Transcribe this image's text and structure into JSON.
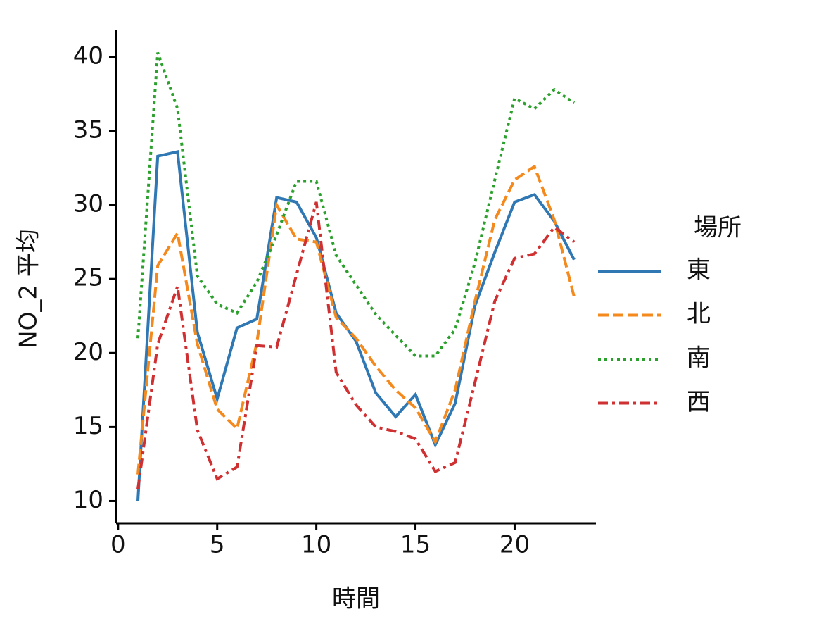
{
  "chart_data": {
    "type": "line",
    "x_label": "時間",
    "y_label": "NO_2 平均",
    "x": [
      1,
      2,
      3,
      4,
      5,
      6,
      7,
      8,
      9,
      10,
      11,
      12,
      13,
      14,
      15,
      16,
      17,
      18,
      19,
      20,
      21,
      22,
      23
    ],
    "series": [
      {
        "name": "東",
        "color": "#2f78b4",
        "linestyle": "solid",
        "values": [
          10.0,
          33.3,
          33.6,
          21.4,
          16.9,
          21.7,
          22.3,
          30.5,
          30.2,
          27.8,
          22.7,
          20.8,
          17.3,
          15.7,
          17.2,
          13.8,
          16.6,
          23.2,
          26.8,
          30.2,
          30.7,
          28.9,
          26.3
        ]
      },
      {
        "name": "北",
        "color": "#f48a1e",
        "linestyle": "dashed",
        "values": [
          11.8,
          25.9,
          28.1,
          20.6,
          16.2,
          14.9,
          20.7,
          30.0,
          27.7,
          27.5,
          22.4,
          21.0,
          19.1,
          17.5,
          16.3,
          14.0,
          17.5,
          23.5,
          29.0,
          31.7,
          32.6,
          29.0,
          23.8
        ]
      },
      {
        "name": "南",
        "color": "#2ca02c",
        "linestyle": "dotted",
        "values": [
          21.0,
          40.3,
          36.5,
          25.2,
          23.3,
          22.7,
          24.8,
          28.0,
          31.6,
          31.6,
          26.6,
          24.6,
          22.6,
          21.2,
          19.8,
          19.8,
          21.6,
          26.1,
          31.7,
          37.2,
          36.5,
          37.8,
          36.9
        ]
      },
      {
        "name": "西",
        "color": "#cf3031",
        "linestyle": "dashdot",
        "values": [
          10.8,
          20.6,
          24.5,
          14.8,
          11.5,
          12.3,
          20.5,
          20.4,
          25.3,
          30.2,
          18.7,
          16.5,
          15.0,
          14.7,
          14.2,
          12.0,
          12.6,
          18.0,
          23.5,
          26.4,
          26.7,
          28.5,
          27.5
        ]
      }
    ],
    "legend_title": "場所",
    "xlim": [
      -0.1,
      24.1
    ],
    "xticks": [
      0,
      5,
      10,
      15,
      20
    ],
    "ylim": [
      8.5,
      41.85
    ],
    "yticks": [
      10,
      15,
      20,
      25,
      30,
      35,
      40
    ],
    "legend": "right",
    "grid": false
  }
}
